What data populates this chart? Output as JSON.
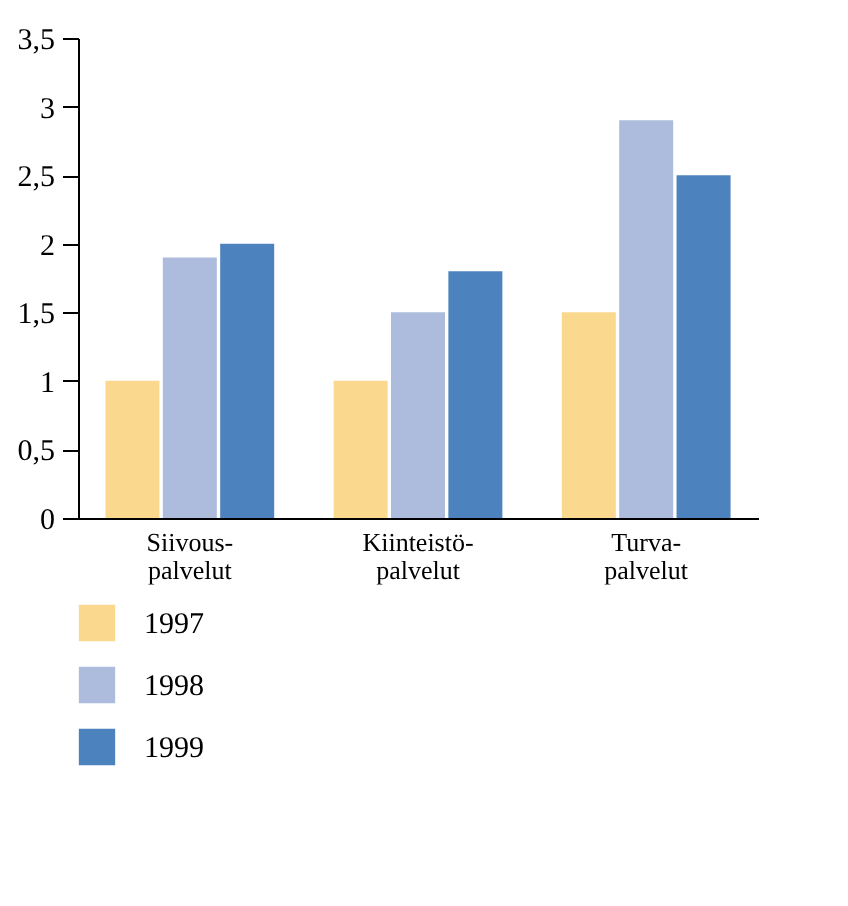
{
  "chart_data": {
    "type": "bar",
    "categories": [
      "Siivous-\npalvelut",
      "Kiinteistö-\npalvelut",
      "Turva-\npalvelut"
    ],
    "series": [
      {
        "name": "1997",
        "color": "#fad98f",
        "values": [
          1,
          1,
          1.5
        ]
      },
      {
        "name": "1998",
        "color": "#adbbdc",
        "values": [
          1.9,
          1.5,
          2.9
        ]
      },
      {
        "name": "1999",
        "color": "#4c83be",
        "values": [
          2,
          1.8,
          2.5
        ]
      }
    ],
    "ylim": [
      0,
      3.5
    ],
    "yticks": [
      0,
      {
        "value": 0.5,
        "label": "0,5"
      },
      1,
      {
        "value": 1.5,
        "label": "1,5"
      },
      2,
      {
        "value": 2.5,
        "label": "2,5"
      },
      3,
      {
        "value": 3.5,
        "label": "3,5"
      }
    ],
    "grid": false,
    "legend": "bottom left"
  }
}
